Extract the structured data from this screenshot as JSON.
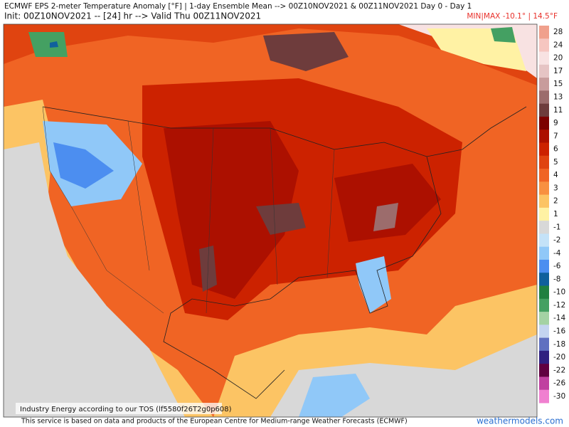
{
  "header": {
    "title": "ECMWF EPS 2-meter Temperature Anomaly [°F] | 1-day Ensemble Mean --> 00Z10NOV2021 & 00Z11NOV2021  Day 0 - Day 1",
    "subtitle": "Init: 00Z10NOV2021 -- [24] hr --> Valid Thu 00Z11NOV2021",
    "minmax": "MIN|MAX -10.1° | 14.5°F"
  },
  "map": {
    "notice": "Industry Energy according to our TOS (lf5580f26T2g0p608)"
  },
  "legend": {
    "items": [
      {
        "value": 28,
        "color": "#f0a08c"
      },
      {
        "value": 24,
        "color": "#f6c6c0"
      },
      {
        "value": 20,
        "color": "#f8e2e2"
      },
      {
        "value": 17,
        "color": "#e6c4c4"
      },
      {
        "value": 15,
        "color": "#c89c9c"
      },
      {
        "value": 13,
        "color": "#9c6c6c"
      },
      {
        "value": 11,
        "color": "#6e3c3c"
      },
      {
        "value": 9,
        "color": "#7c0000"
      },
      {
        "value": 7,
        "color": "#ac1000"
      },
      {
        "value": 6,
        "color": "#cc2200"
      },
      {
        "value": 5,
        "color": "#e04410"
      },
      {
        "value": 4,
        "color": "#f06424"
      },
      {
        "value": 3,
        "color": "#f89040"
      },
      {
        "value": 2,
        "color": "#fcc464"
      },
      {
        "value": 1,
        "color": "#fff2a4"
      },
      {
        "value": -1,
        "color": "#d8d8d8"
      },
      {
        "value": -2,
        "color": "#c4e2f8"
      },
      {
        "value": -4,
        "color": "#90c8f8"
      },
      {
        "value": -6,
        "color": "#4c8ef0"
      },
      {
        "value": -8,
        "color": "#10609c"
      },
      {
        "value": -10,
        "color": "#208040"
      },
      {
        "value": -12,
        "color": "#44a062"
      },
      {
        "value": -14,
        "color": "#a4d2a4"
      },
      {
        "value": -16,
        "color": "#c4d4f0"
      },
      {
        "value": -18,
        "color": "#6070c0"
      },
      {
        "value": -20,
        "color": "#302080"
      },
      {
        "value": -22,
        "color": "#600040"
      },
      {
        "value": -26,
        "color": "#c040a0"
      },
      {
        "value": -30,
        "color": "#f080d0"
      }
    ]
  },
  "footer": {
    "credit": "This service is based on data and products of the European Centre for Medium-range Weather Forecasts (ECMWF)",
    "site": "weathermodels.com"
  }
}
